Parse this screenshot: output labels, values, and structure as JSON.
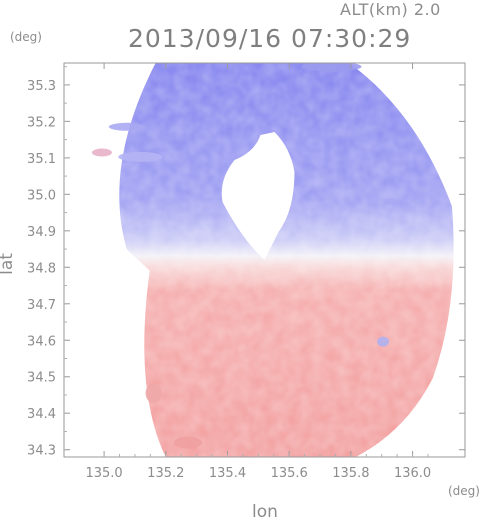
{
  "header": {
    "altitude": "ALT(km) 2.0",
    "timestamp": "2013/09/16 07:30:29"
  },
  "chart_data": {
    "type": "heatmap",
    "title": "2013/09/16 07:30:29",
    "subtitle": "ALT(km) 2.0",
    "xlabel": "lon",
    "ylabel": "lat",
    "xunit": "(deg)",
    "yunit": "(deg)",
    "xlim": [
      134.87,
      136.17
    ],
    "ylim": [
      34.28,
      35.36
    ],
    "xticks": [
      "135.0",
      "135.2",
      "135.4",
      "135.6",
      "135.8",
      "136.0"
    ],
    "xtick_values": [
      135.0,
      135.2,
      135.4,
      135.6,
      135.8,
      136.0
    ],
    "yticks": [
      "34.3",
      "34.4",
      "34.5",
      "34.6",
      "34.7",
      "34.8",
      "34.9",
      "35.0",
      "35.1",
      "35.2",
      "35.3"
    ],
    "ytick_values": [
      34.3,
      34.4,
      34.5,
      34.6,
      34.7,
      34.8,
      34.9,
      35.0,
      35.1,
      35.2,
      35.3
    ],
    "radar_center": {
      "lon": 135.52,
      "lat": 34.82
    },
    "radar_range_deg": 0.62,
    "grid": false,
    "colors": {
      "approaching": "#8c8cf0",
      "receding": "#f4a0a0",
      "axis": "#999999",
      "text": "#8c8c8c"
    }
  }
}
